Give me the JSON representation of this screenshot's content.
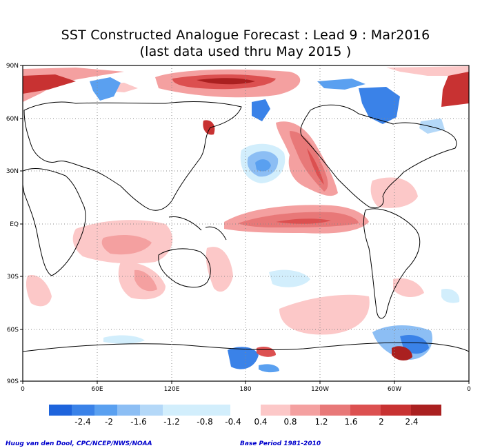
{
  "title": {
    "line1": "SST Constructed Analogue Forecast : Lead 9 : Mar2016",
    "line2": "(last data used thru May 2015 )"
  },
  "axes": {
    "lat_labels": [
      "90N",
      "60N",
      "30N",
      "EQ",
      "30S",
      "60S",
      "90S"
    ],
    "lon_labels": [
      "0",
      "60E",
      "120E",
      "180",
      "120W",
      "60W",
      "0"
    ]
  },
  "colorbar": {
    "negative_colors": [
      "#1e64dc",
      "#3a82e8",
      "#5aa0f0",
      "#8cbef4",
      "#b4d8f8",
      "#d2eefc"
    ],
    "positive_colors": [
      "#fcc8c8",
      "#f4a0a0",
      "#e87878",
      "#dc5050",
      "#c83232",
      "#aa2020"
    ],
    "labels": [
      "-2.4",
      "-2",
      "-1.6",
      "-1.2",
      "-0.8",
      "-0.4",
      "0.4",
      "0.8",
      "1.2",
      "1.6",
      "2",
      "2.4"
    ]
  },
  "credits": {
    "left": "Huug van den Dool, CPC/NCEP/NWS/NOAA",
    "right": "Base Period 1981-2010"
  }
}
